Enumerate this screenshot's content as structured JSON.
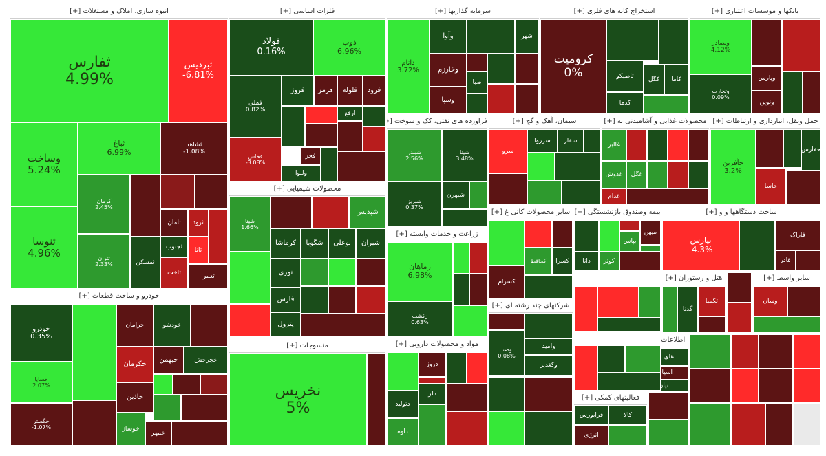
{
  "colors": {
    "strong_positive": "#36e838",
    "mid_positive": "#2e9a2e",
    "dark_positive": "#1a4d1a",
    "dark_negative": "#5c1414",
    "mid_negative": "#b81d1d",
    "strong_negative": "#ff2a2a"
  },
  "chart_data": {
    "type": "treemap",
    "sectors": [
      {
        "name": "انبوه سازی، املاک و مستغلات [+]",
        "tiles": [
          {
            "symbol": "ثفارس",
            "change": "4.99%",
            "tone": "strong_positive"
          },
          {
            "symbol": "ثبردیس",
            "change": "-6.81%",
            "tone": "strong_negative"
          },
          {
            "symbol": "وساخت",
            "change": "5.24%",
            "tone": "strong_positive"
          },
          {
            "symbol": "ثباغ",
            "change": "6.99%",
            "tone": "strong_positive"
          },
          {
            "symbol": "ثشاهد",
            "change": "-1.08%",
            "tone": "dark_negative"
          },
          {
            "symbol": "ثنوسا",
            "change": "4.96%",
            "tone": "strong_positive"
          },
          {
            "symbol": "کرمان",
            "change": "2.45%",
            "tone": "mid_positive"
          },
          {
            "symbol": "ثامان",
            "change": "",
            "tone": "dark_negative"
          },
          {
            "symbol": "ثرود",
            "change": "",
            "tone": "mid_negative"
          },
          {
            "symbol": "ثجنوب",
            "change": "",
            "tone": "dark_positive"
          },
          {
            "symbol": "ثاتا",
            "change": "",
            "tone": "strong_negative"
          },
          {
            "symbol": "ثمسکن",
            "change": "",
            "tone": "dark_positive"
          },
          {
            "symbol": "ثتران",
            "change": "2.33%",
            "tone": "mid_positive"
          },
          {
            "symbol": "ثاخت",
            "change": "",
            "tone": "mid_negative"
          },
          {
            "symbol": "ثعمرا",
            "change": "",
            "tone": "dark_negative"
          }
        ]
      },
      {
        "name": "فلزات اساسی [+]",
        "tiles": [
          {
            "symbol": "فولاد",
            "change": "0.16%",
            "tone": "dark_positive"
          },
          {
            "symbol": "ذوب",
            "change": "6.96%",
            "tone": "strong_positive"
          },
          {
            "symbol": "فملی",
            "change": "0.82%",
            "tone": "dark_positive"
          },
          {
            "symbol": "فروژ",
            "change": "",
            "tone": "dark_positive"
          },
          {
            "symbol": "هرمز",
            "change": "",
            "tone": "dark_negative"
          },
          {
            "symbol": "فلوله",
            "change": "",
            "tone": "dark_negative"
          },
          {
            "symbol": "فرود",
            "change": "",
            "tone": "dark_negative"
          },
          {
            "symbol": "ارفع",
            "change": "",
            "tone": "dark_positive"
          },
          {
            "symbol": "فجر",
            "change": "",
            "tone": "dark_negative"
          },
          {
            "symbol": "ولنوا",
            "change": "",
            "tone": "dark_positive"
          },
          {
            "symbol": "فخاس",
            "change": "-3.08%",
            "tone": "mid_negative"
          }
        ]
      },
      {
        "name": "سرمایه گذاریها [+]",
        "tiles": [
          {
            "symbol": "دانام",
            "change": "3.72%",
            "tone": "strong_positive"
          },
          {
            "symbol": "وآوا",
            "change": "",
            "tone": "dark_positive"
          },
          {
            "symbol": "وخارزم",
            "change": "",
            "tone": "dark_negative"
          },
          {
            "symbol": "صبا",
            "change": "",
            "tone": "dark_positive"
          },
          {
            "symbol": "وسپا",
            "change": "",
            "tone": "dark_negative"
          },
          {
            "symbol": "شهر",
            "change": "",
            "tone": "dark_positive"
          }
        ]
      },
      {
        "name": "استخراج کانه های فلزی [+]",
        "tiles": [
          {
            "symbol": "کرومیت",
            "change": "0%",
            "tone": "dark_negative"
          },
          {
            "symbol": "کگل",
            "change": "",
            "tone": "dark_positive"
          },
          {
            "symbol": "کاما",
            "change": "",
            "tone": "dark_positive"
          },
          {
            "symbol": "تاصیکو",
            "change": "",
            "tone": "dark_positive"
          },
          {
            "symbol": "کدما",
            "change": "",
            "tone": "dark_positive"
          }
        ]
      },
      {
        "name": "بانکها و موسسات اعتباری [+]",
        "tiles": [
          {
            "symbol": "وبصادر",
            "change": "4.12%",
            "tone": "strong_positive"
          },
          {
            "symbol": "وتجارت",
            "change": "0.09%",
            "tone": "dark_positive"
          },
          {
            "symbol": "وپارس",
            "change": "",
            "tone": "dark_negative"
          },
          {
            "symbol": "ونوین",
            "change": "",
            "tone": "dark_negative"
          }
        ]
      },
      {
        "name": "خودرو و ساخت قطعات [+]",
        "tiles": [
          {
            "symbol": "خودرو",
            "change": "0.35%",
            "tone": "dark_positive"
          },
          {
            "symbol": "خساپا",
            "change": "2.07%",
            "tone": "strong_positive"
          },
          {
            "symbol": "خگستر",
            "change": "-1.07%",
            "tone": "dark_negative"
          },
          {
            "symbol": "خرامان",
            "change": "",
            "tone": "dark_negative"
          },
          {
            "symbol": "خبهمن",
            "change": "",
            "tone": "dark_negative"
          },
          {
            "symbol": "خکرمان",
            "change": "",
            "tone": "mid_negative"
          },
          {
            "symbol": "خاذین",
            "change": "",
            "tone": "dark_negative"
          },
          {
            "symbol": "خودشو",
            "change": "",
            "tone": "dark_positive"
          },
          {
            "symbol": "خمهر",
            "change": "",
            "tone": "dark_negative"
          },
          {
            "symbol": "خوساز",
            "change": "",
            "tone": "mid_positive"
          },
          {
            "symbol": "خچرخش",
            "change": "",
            "tone": "dark_positive"
          }
        ]
      },
      {
        "name": "محصولات شیمیایی [+]",
        "tiles": [
          {
            "symbol": "شپدیس",
            "change": "",
            "tone": "mid_positive"
          },
          {
            "symbol": "شپنا",
            "change": "1.66%",
            "tone": "mid_positive"
          },
          {
            "symbol": "کرماشا",
            "change": "",
            "tone": "dark_positive"
          },
          {
            "symbol": "شگویا",
            "change": "",
            "tone": "dark_positive"
          },
          {
            "symbol": "بوعلی",
            "change": "",
            "tone": "dark_positive"
          },
          {
            "symbol": "شیران",
            "change": "",
            "tone": "dark_positive"
          },
          {
            "symbol": "نوری",
            "change": "",
            "tone": "dark_positive"
          },
          {
            "symbol": "فارس",
            "change": "",
            "tone": "dark_positive"
          },
          {
            "symbol": "پترول",
            "change": "",
            "tone": "dark_positive"
          }
        ]
      },
      {
        "name": "منسوجات [+]",
        "tiles": [
          {
            "symbol": "نخریس",
            "change": "5%",
            "tone": "strong_positive"
          }
        ]
      },
      {
        "name": "فراورده های نفتی، کک و سوخت [+]",
        "tiles": [
          {
            "symbol": "شبندر",
            "change": "2.56%",
            "tone": "mid_positive"
          },
          {
            "symbol": "شبریز",
            "change": "0.37%",
            "tone": "dark_positive"
          },
          {
            "symbol": "شپنا",
            "change": "3.48%",
            "tone": "dark_positive"
          },
          {
            "symbol": "شبهرن",
            "change": "",
            "tone": "dark_positive"
          }
        ]
      },
      {
        "name": "سیمان، آهک و گچ [+]",
        "tiles": [
          {
            "symbol": "سرو",
            "change": "",
            "tone": "strong_negative"
          },
          {
            "symbol": "سزروا",
            "change": "",
            "tone": "dark_positive"
          },
          {
            "symbol": "سفار",
            "change": "",
            "tone": "dark_positive"
          }
        ]
      },
      {
        "name": "محصولات غذایی و آشامیدنی به [+]",
        "tiles": [
          {
            "symbol": "غالبر",
            "change": "",
            "tone": "mid_positive"
          },
          {
            "symbol": "غگل",
            "change": "",
            "tone": "mid_positive"
          },
          {
            "symbol": "غدوش",
            "change": "",
            "tone": "mid_positive"
          },
          {
            "symbol": "غدام",
            "change": "",
            "tone": "mid_negative"
          }
        ]
      },
      {
        "name": "حمل ونقل، انبارداری و ارتباطات [+]",
        "tiles": [
          {
            "symbol": "حآفرین",
            "change": "3.2%",
            "tone": "strong_positive"
          },
          {
            "symbol": "حفارس",
            "change": "",
            "tone": "dark_positive"
          },
          {
            "symbol": "حاسا",
            "change": "",
            "tone": "mid_negative"
          }
        ]
      },
      {
        "name": "زراعت و خدمات وابسته [+]",
        "tiles": [
          {
            "symbol": "زماهان",
            "change": "6.98%",
            "tone": "strong_positive"
          },
          {
            "symbol": "زکشت",
            "change": "0.63%",
            "tone": "dark_positive"
          }
        ]
      },
      {
        "name": "سایر محصولات کانی غ [+]",
        "tiles": [
          {
            "symbol": "کسرام",
            "change": "",
            "tone": "dark_negative"
          },
          {
            "symbol": "کسرا",
            "change": "",
            "tone": "dark_positive"
          },
          {
            "symbol": "کحافظ",
            "change": "",
            "tone": "mid_positive"
          }
        ]
      },
      {
        "name": "بیمه وصندوق بازنشستگی [+]",
        "tiles": [
          {
            "symbol": "میهن",
            "change": "",
            "tone": "dark_negative"
          },
          {
            "symbol": "بپاس",
            "change": "",
            "tone": "mid_positive"
          },
          {
            "symbol": "کوثر",
            "change": "",
            "tone": "mid_positive"
          },
          {
            "symbol": "دانا",
            "change": "",
            "tone": "dark_positive"
          }
        ]
      },
      {
        "name": "ساخت دستگاهها و و [+]",
        "tiles": [
          {
            "symbol": "تپارس",
            "change": "-4.3%",
            "tone": "strong_negative"
          },
          {
            "symbol": "فاراک",
            "change": "",
            "tone": "dark_negative"
          },
          {
            "symbol": "قادر",
            "change": "",
            "tone": "dark_negative"
          }
        ]
      },
      {
        "name": "مواد و محصولات دارویی [+]",
        "tiles": [
          {
            "symbol": "دتولید",
            "change": "",
            "tone": "dark_positive"
          },
          {
            "symbol": "داوه",
            "change": "",
            "tone": "mid_positive"
          },
          {
            "symbol": "دروز",
            "change": "",
            "tone": "dark_negative"
          },
          {
            "symbol": "دلر",
            "change": "",
            "tone": "dark_positive"
          }
        ]
      },
      {
        "name": "شرکتهای چند رشته ای [+]",
        "tiles": [
          {
            "symbol": "وامید",
            "change": "",
            "tone": "dark_positive"
          },
          {
            "symbol": "وکغدیر",
            "change": "",
            "tone": "dark_positive"
          },
          {
            "symbol": "وصنا",
            "change": "0.08%",
            "tone": "dark_positive"
          }
        ]
      },
      {
        "name": "فعالیتهای کمکی [+]",
        "tiles": [
          {
            "symbol": "فرابورس",
            "change": "",
            "tone": "dark_positive"
          },
          {
            "symbol": "کالا",
            "change": "",
            "tone": "dark_positive"
          },
          {
            "symbol": "انرژی",
            "change": "",
            "tone": "dark_negative"
          }
        ]
      },
      {
        "name": "هتل و رستوران [+]",
        "tiles": [
          {
            "symbol": "گدنا",
            "change": "",
            "tone": "dark_positive"
          },
          {
            "symbol": "تکمبا",
            "change": "",
            "tone": "mid_negative"
          }
        ]
      },
      {
        "name": "اطلاعات و [+]",
        "tiles": [
          {
            "symbol": "های وب",
            "change": "",
            "tone": "dark_positive"
          },
          {
            "symbol": "اسیاتک",
            "change": "",
            "tone": "dark_negative"
          },
          {
            "symbol": "نیان",
            "change": "",
            "tone": "dark_positive"
          }
        ]
      },
      {
        "name": "سایر واسط [+]",
        "tiles": [
          {
            "symbol": "وسان",
            "change": "",
            "tone": "mid_negative"
          }
        ]
      }
    ]
  }
}
